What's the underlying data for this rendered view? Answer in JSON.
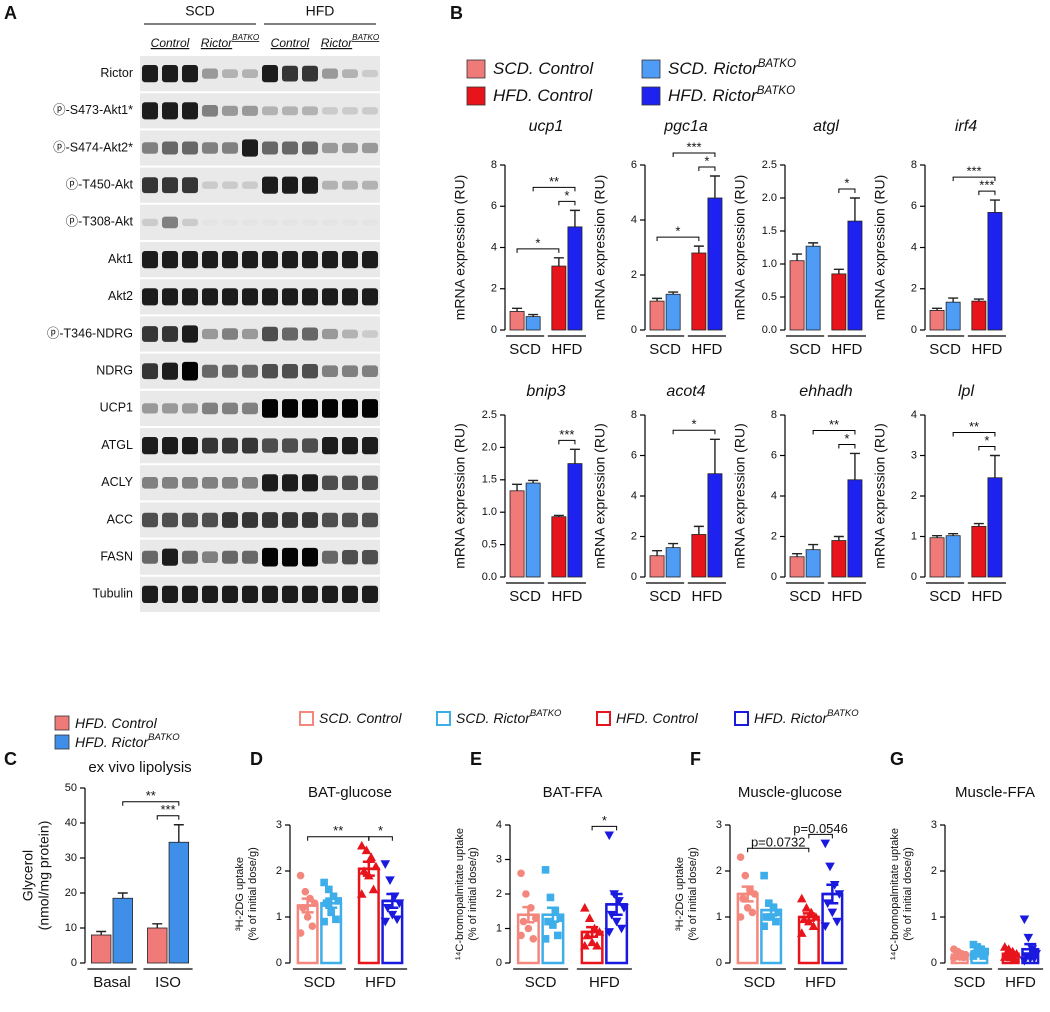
{
  "blot": {
    "panel": "A",
    "groups": [
      "SCD",
      "HFD"
    ],
    "lanes": [
      {
        "text": "Control"
      },
      {
        "text": "Rictor",
        "sup": "BATKO"
      },
      {
        "text": "Control"
      },
      {
        "text": "Rictor",
        "sup": "BATKO"
      }
    ],
    "rows": [
      "Rictor",
      "ⓟ-S473-Akt1*",
      "ⓟ-S474-Akt2*",
      "ⓟ-T450-Akt",
      "ⓟ-T308-Akt",
      "Akt1",
      "Akt2",
      "ⓟ-T346-NDRG",
      "NDRG",
      "UCP1",
      "ATGL",
      "ACLY",
      "ACC",
      "FASN",
      "Tubulin"
    ]
  },
  "legend_b": [
    {
      "name": "SCD. Control",
      "color": "#f07a78"
    },
    {
      "name": "SCD. Rictor",
      "name_sup": "BATKO",
      "color": "#4f9cf6"
    },
    {
      "name": "HFD. Control",
      "color": "#e8141b"
    },
    {
      "name": "HFD. Rictor",
      "name_sup": "BATKO",
      "color": "#1e22f0"
    }
  ],
  "legend_dg": [
    {
      "name": "SCD. Control",
      "color": "#f4877d",
      "marker": "circle"
    },
    {
      "name": "SCD. Rictor",
      "name_sup": "BATKO",
      "color": "#3daee9",
      "marker": "square"
    },
    {
      "name": "HFD. Control",
      "color": "#e8141c",
      "marker": "triangle"
    },
    {
      "name": "HFD. Rictor",
      "name_sup": "BATKO",
      "color": "#1a1adf",
      "marker": "triangle-down"
    }
  ],
  "chart_data": [
    {
      "type": "bar",
      "panel": "B",
      "title": "ucp1",
      "y_label": [
        "mRNA expression (RU)"
      ],
      "groups": [
        "SCD",
        "HFD"
      ],
      "values": [
        0.9,
        0.65,
        3.1,
        5.0
      ],
      "errors": [
        0.15,
        0.1,
        0.4,
        0.8
      ],
      "ylim": [
        0,
        8
      ],
      "yticks": [
        0,
        2,
        4,
        6,
        8
      ],
      "annotations": [
        {
          "text": "*",
          "between": [
            2,
            3
          ]
        },
        {
          "text": "*",
          "between": [
            0,
            2
          ]
        },
        {
          "text": "**",
          "between": [
            1,
            3
          ]
        }
      ]
    },
    {
      "type": "bar",
      "title": "pgc1a",
      "y_label": [
        "mRNA expression (RU)"
      ],
      "groups": [
        "SCD",
        "HFD"
      ],
      "values": [
        1.05,
        1.3,
        2.8,
        4.8
      ],
      "errors": [
        0.1,
        0.08,
        0.25,
        0.8
      ],
      "ylim": [
        0,
        6
      ],
      "yticks": [
        0,
        2,
        4,
        6
      ],
      "annotations": [
        {
          "text": "*",
          "between": [
            2,
            3
          ]
        },
        {
          "text": "*",
          "between": [
            0,
            2
          ]
        },
        {
          "text": "***",
          "between": [
            1,
            3
          ]
        }
      ]
    },
    {
      "type": "bar",
      "title": "atgl",
      "y_label": [
        "mRNA expression (RU)"
      ],
      "groups": [
        "SCD",
        "HFD"
      ],
      "values": [
        1.05,
        1.27,
        0.85,
        1.65
      ],
      "errors": [
        0.1,
        0.05,
        0.07,
        0.35
      ],
      "ylim": [
        0,
        2.5
      ],
      "yticks": [
        {
          "value": 0,
          "label": "0.0"
        },
        0.5,
        {
          "value": 1,
          "label": "1.0"
        },
        1.5,
        {
          "value": 2,
          "label": "2.0"
        },
        2.5
      ],
      "annotations": [
        {
          "text": "*",
          "between": [
            2,
            3
          ]
        }
      ]
    },
    {
      "type": "bar",
      "title": "irf4",
      "y_label": [
        "mRNA expression (RU)"
      ],
      "groups": [
        "SCD",
        "HFD"
      ],
      "values": [
        0.95,
        1.35,
        1.4,
        5.7
      ],
      "errors": [
        0.1,
        0.2,
        0.1,
        0.6
      ],
      "ylim": [
        0,
        8
      ],
      "yticks": [
        0,
        2,
        4,
        6,
        8
      ],
      "annotations": [
        {
          "text": "***",
          "between": [
            2,
            3
          ]
        },
        {
          "text": "***",
          "between": [
            1,
            3
          ]
        }
      ]
    },
    {
      "type": "bar",
      "title": "bnip3",
      "y_label": [
        "mRNA expression (RU)"
      ],
      "groups": [
        "SCD",
        "HFD"
      ],
      "values": [
        1.33,
        1.45,
        0.93,
        1.75
      ],
      "errors": [
        0.1,
        0.04,
        0.02,
        0.22
      ],
      "ylim": [
        0,
        2.5
      ],
      "yticks": [
        {
          "value": 0,
          "label": "0.0"
        },
        0.5,
        {
          "value": 1,
          "label": "1.0"
        },
        1.5,
        {
          "value": 2,
          "label": "2.0"
        },
        2.5
      ],
      "annotations": [
        {
          "text": "***",
          "between": [
            2,
            3
          ]
        }
      ]
    },
    {
      "type": "bar",
      "title": "acot4",
      "y_label": [
        "mRNA expression (RU)"
      ],
      "groups": [
        "SCD",
        "HFD"
      ],
      "values": [
        1.05,
        1.45,
        2.1,
        5.1
      ],
      "errors": [
        0.25,
        0.2,
        0.4,
        1.7
      ],
      "ylim": [
        0,
        8
      ],
      "yticks": [
        0,
        2,
        4,
        6,
        8
      ],
      "annotations": [
        {
          "text": "*",
          "between": [
            1,
            3
          ]
        }
      ]
    },
    {
      "type": "bar",
      "title": "ehhadh",
      "y_label": [
        "mRNA expression (RU)"
      ],
      "groups": [
        "SCD",
        "HFD"
      ],
      "values": [
        1.0,
        1.35,
        1.8,
        4.8
      ],
      "errors": [
        0.15,
        0.25,
        0.2,
        1.3
      ],
      "ylim": [
        0,
        8
      ],
      "yticks": [
        0,
        2,
        4,
        6,
        8
      ],
      "annotations": [
        {
          "text": "*",
          "between": [
            2,
            3
          ]
        },
        {
          "text": "**",
          "between": [
            1,
            3
          ]
        }
      ]
    },
    {
      "type": "bar",
      "title": "lpl",
      "y_label": [
        "mRNA expression (RU)"
      ],
      "groups": [
        "SCD",
        "HFD"
      ],
      "values": [
        0.97,
        1.02,
        1.25,
        2.45
      ],
      "errors": [
        0.05,
        0.05,
        0.07,
        0.55
      ],
      "ylim": [
        0,
        4
      ],
      "yticks": [
        0,
        1,
        2,
        3,
        4
      ],
      "annotations": [
        {
          "text": "*",
          "between": [
            2,
            3
          ]
        },
        {
          "text": "**",
          "between": [
            1,
            3
          ]
        }
      ]
    },
    {
      "type": "bar",
      "panel": "C",
      "title": "ex vivo lipolysis",
      "y_label": [
        "Glycerol",
        "(nmol/mg protein)"
      ],
      "groups": [
        "Basal",
        "ISO"
      ],
      "series": [
        {
          "name": "HFD. Control",
          "color": "#f07a78",
          "values": [
            8,
            10
          ],
          "errors": [
            1,
            1.2
          ]
        },
        {
          "name": "HFD. Rictor",
          "name_sup": "BATKO",
          "color": "#3f8fe8",
          "values": [
            18.5,
            34.5
          ],
          "errors": [
            1.5,
            5
          ]
        }
      ],
      "ylim": [
        0,
        50
      ],
      "yticks": [
        0,
        10,
        20,
        30,
        40,
        50
      ],
      "annotations": [
        {
          "text": "***",
          "between": [
            2,
            3
          ]
        },
        {
          "text": "**",
          "between": [
            1,
            3
          ]
        }
      ]
    },
    {
      "type": "dotbar",
      "panel": "D",
      "title": "BAT-glucose",
      "y_label": [
        "³H-2DG uptake",
        "(% of initial dose/g)"
      ],
      "groups": [
        "SCD",
        "HFD"
      ],
      "values": [
        1.25,
        1.3,
        2.05,
        1.35
      ],
      "errors": [
        0.15,
        0.1,
        0.15,
        0.15
      ],
      "points": [
        [
          1.9,
          1.55,
          1.4,
          1.3,
          1.2,
          1.0,
          0.8,
          0.65
        ],
        [
          1.75,
          1.6,
          1.45,
          1.35,
          1.3,
          1.1,
          0.95,
          0.9
        ],
        [
          2.55,
          2.45,
          2.3,
          2.1,
          2.0,
          1.9,
          1.6,
          1.5
        ],
        [
          2.15,
          1.8,
          1.45,
          1.3,
          1.2,
          1.05,
          0.95,
          0.9
        ]
      ],
      "ylim": [
        0,
        3
      ],
      "yticks": [
        0,
        1,
        2,
        3
      ],
      "annotations": [
        {
          "text": "**",
          "between": [
            0,
            2
          ]
        },
        {
          "text": "*",
          "between": [
            2,
            3
          ]
        }
      ]
    },
    {
      "type": "dotbar",
      "panel": "E",
      "title": "BAT-FFA",
      "y_label": [
        "¹⁴C-bromopalmitate uptake",
        "(% of initial dose/g)"
      ],
      "groups": [
        "SCD",
        "HFD"
      ],
      "values": [
        1.4,
        1.4,
        0.9,
        1.7
      ],
      "errors": [
        0.22,
        0.2,
        0.14,
        0.3
      ],
      "points": [
        [
          2.6,
          2.0,
          1.6,
          1.3,
          1.2,
          1.0,
          0.7,
          0.8
        ],
        [
          2.7,
          1.9,
          1.5,
          1.3,
          1.2,
          1.1,
          0.8,
          0.7
        ],
        [
          1.6,
          1.3,
          1.0,
          0.9,
          0.8,
          0.6,
          0.5,
          0.5
        ],
        [
          3.7,
          2.0,
          1.8,
          1.6,
          1.4,
          1.2,
          1.0,
          0.9
        ]
      ],
      "ylim": [
        0,
        4
      ],
      "yticks": [
        0,
        1,
        2,
        3,
        4
      ],
      "annotations": [
        {
          "text": "*",
          "between": [
            2,
            3
          ]
        }
      ]
    },
    {
      "type": "dotbar",
      "panel": "F",
      "title": "Muscle-glucose",
      "y_label": [
        "³H-2DG uptake",
        "(% of initial dose/g)"
      ],
      "groups": [
        "SCD",
        "HFD"
      ],
      "values": [
        1.5,
        1.15,
        1.0,
        1.5
      ],
      "errors": [
        0.16,
        0.12,
        0.08,
        0.2
      ],
      "points": [
        [
          2.3,
          1.9,
          1.6,
          1.5,
          1.4,
          1.2,
          1.1,
          1.0
        ],
        [
          1.9,
          1.3,
          1.2,
          1.1,
          1.0,
          1.0,
          0.9,
          0.8
        ],
        [
          1.4,
          1.2,
          1.1,
          1.0,
          0.95,
          0.9,
          0.8,
          0.65
        ],
        [
          2.6,
          2.1,
          1.7,
          1.5,
          1.3,
          1.1,
          0.9,
          0.8
        ]
      ],
      "ylim": [
        0,
        3
      ],
      "yticks": [
        0,
        1,
        2,
        3
      ],
      "annotations": [
        {
          "text": "p=0.0732",
          "between": [
            0,
            2
          ]
        },
        {
          "text": "p=0.0546",
          "between": [
            2,
            3
          ]
        }
      ]
    },
    {
      "type": "dotbar",
      "panel": "G",
      "title": "Muscle-FFA",
      "y_label": [
        "¹⁴C-bromopalmitate uptake",
        "(% of initial dose/g)"
      ],
      "groups": [
        "SCD",
        "HFD"
      ],
      "values": [
        0.18,
        0.25,
        0.2,
        0.3
      ],
      "errors": [
        0.03,
        0.03,
        0.03,
        0.11
      ],
      "points": [
        [
          0.3,
          0.25,
          0.2,
          0.18,
          0.15,
          0.13,
          0.12,
          0.11
        ],
        [
          0.4,
          0.35,
          0.3,
          0.25,
          0.2,
          0.2,
          0.15,
          0.15
        ],
        [
          0.35,
          0.3,
          0.25,
          0.2,
          0.15,
          0.12,
          0.1,
          0.13
        ],
        [
          0.95,
          0.55,
          0.3,
          0.2,
          0.15,
          0.1,
          0.1,
          0.05
        ]
      ],
      "ylim": [
        0,
        3
      ],
      "yticks": [
        0,
        1,
        2,
        3
      ],
      "annotations": []
    }
  ]
}
